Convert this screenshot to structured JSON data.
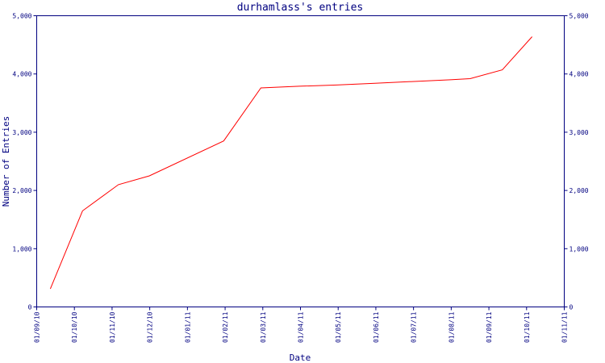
{
  "chart_data": {
    "type": "line",
    "title": "durhamlass's entries",
    "xlabel": "Date",
    "ylabel": "Number of Entries",
    "x_ticks": [
      "01/09/10",
      "01/10/10",
      "01/11/10",
      "01/12/10",
      "01/01/11",
      "01/02/11",
      "01/03/11",
      "01/04/11",
      "01/05/11",
      "01/06/11",
      "01/07/11",
      "01/08/11",
      "01/09/11",
      "01/10/11",
      "01/11/11"
    ],
    "y_ticks": [
      "0",
      "1,000",
      "2,000",
      "3,000",
      "4,000",
      "5,000"
    ],
    "ylim": [
      0,
      5000
    ],
    "xlim": [
      "2010-09-01",
      "2011-11-01"
    ],
    "series": [
      {
        "color": "#ff0000",
        "x": [
          "2010-09-12",
          "2010-10-08",
          "2010-11-06",
          "2010-12-01",
          "2011-01-30",
          "2011-03-01",
          "2011-04-01",
          "2011-05-01",
          "2011-06-01",
          "2011-07-01",
          "2011-08-01",
          "2011-08-17",
          "2011-09-12",
          "2011-10-06"
        ],
        "y": [
          310,
          1650,
          2100,
          2250,
          2850,
          3760,
          3790,
          3810,
          3840,
          3870,
          3900,
          3920,
          4070,
          4640
        ]
      }
    ],
    "grid": false,
    "right_axis": true
  }
}
